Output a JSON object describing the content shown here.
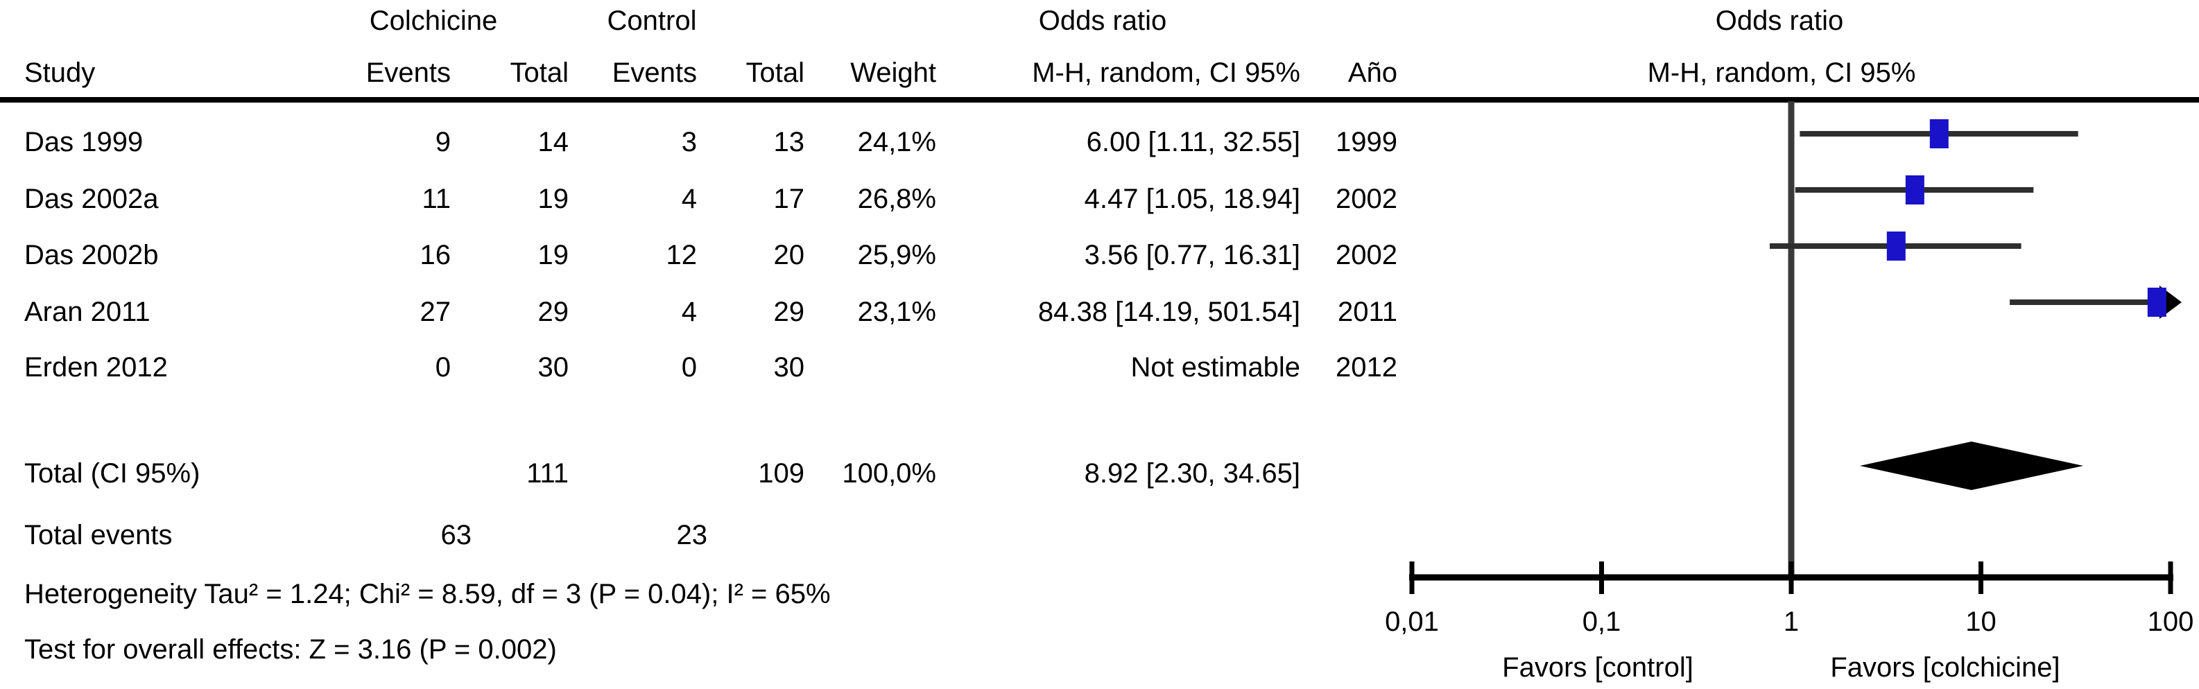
{
  "header": {
    "group": {
      "colchicine": "Colchicine",
      "control": "Control",
      "odds_ratio_left": "Odds ratio",
      "odds_ratio_right": "Odds ratio"
    },
    "columns": {
      "study": "Study",
      "events1": "Events",
      "total1": "Total",
      "events2": "Events",
      "total2": "Total",
      "weight": "Weight",
      "mh_left": "M-H, random, CI 95%",
      "year": "Año",
      "mh_right": "M-H, random, CI 95%"
    }
  },
  "table": {
    "rows": [
      {
        "study": "Das 1999",
        "e1": "9",
        "t1": "14",
        "e2": "3",
        "t2": "13",
        "weight": "24,1%",
        "or_text": "6.00 [1.11, 32.55]",
        "year": "1999"
      },
      {
        "study": "Das 2002a",
        "e1": "11",
        "t1": "19",
        "e2": "4",
        "t2": "17",
        "weight": "26,8%",
        "or_text": "4.47 [1.05, 18.94]",
        "year": "2002"
      },
      {
        "study": "Das 2002b",
        "e1": "16",
        "t1": "19",
        "e2": "12",
        "t2": "20",
        "weight": "25,9%",
        "or_text": "3.56 [0.77, 16.31]",
        "year": "2002"
      },
      {
        "study": "Aran 2011",
        "e1": "27",
        "t1": "29",
        "e2": "4",
        "t2": "29",
        "weight": "23,1%",
        "or_text": "84.38 [14.19, 501.54]",
        "year": "2011"
      },
      {
        "study": "Erden 2012",
        "e1": "0",
        "t1": "30",
        "e2": "0",
        "t2": "30",
        "weight": "",
        "or_text": "Not estimable",
        "year": "2012"
      }
    ],
    "total_row": {
      "label": "Total (CI 95%)",
      "t1": "111",
      "t2": "109",
      "weight": "100,0%",
      "or_text": "8.92 [2.30, 34.65]"
    },
    "total_events_row": {
      "label": "Total events",
      "e1": "63",
      "e2": "23"
    },
    "heterogeneity": "Heterogeneity Tau² = 1.24; Chi² = 8.59, df = 3 (P = 0.04); I² = 65%",
    "overall_effect": "Test for overall effects: Z = 3.16 (P = 0.002)"
  },
  "plot_labels": {
    "favors_left": "Favors [control]",
    "favors_right": "Favors [colchicine]"
  },
  "chart_data": {
    "type": "forest",
    "x_scale": "log10",
    "axis_range": [
      0.01,
      100
    ],
    "axis_ticks": [
      0.01,
      0.1,
      1,
      10,
      100
    ],
    "axis_tick_labels": [
      "0,01",
      "0,1",
      "1",
      "10",
      "100"
    ],
    "null_line": 1,
    "effect_measure": "Odds ratio, M-H random, CI 95%",
    "studies": [
      {
        "name": "Das 1999",
        "or": 6.0,
        "ci_low": 1.11,
        "ci_high": 32.55,
        "weight_pct": 24.1,
        "year": 1999
      },
      {
        "name": "Das 2002a",
        "or": 4.47,
        "ci_low": 1.05,
        "ci_high": 18.94,
        "weight_pct": 26.8,
        "year": 2002
      },
      {
        "name": "Das 2002b",
        "or": 3.56,
        "ci_low": 0.77,
        "ci_high": 16.31,
        "weight_pct": 25.9,
        "year": 2002
      },
      {
        "name": "Aran 2011",
        "or": 84.38,
        "ci_low": 14.19,
        "ci_high": 501.54,
        "weight_pct": 23.1,
        "year": 2011
      },
      {
        "name": "Erden 2012",
        "or": null,
        "ci_low": null,
        "ci_high": null,
        "weight_pct": null,
        "year": 2012,
        "note": "Not estimable"
      }
    ],
    "total": {
      "or": 8.92,
      "ci_low": 2.3,
      "ci_high": 34.65,
      "weight_pct": 100.0
    },
    "totals": {
      "colchicine_total": 111,
      "control_total": 109,
      "colchicine_events": 63,
      "control_events": 23
    },
    "heterogeneity": {
      "tau2": 1.24,
      "chi2": 8.59,
      "df": 3,
      "p": 0.04,
      "i2_pct": 65
    },
    "overall_effect": {
      "z": 3.16,
      "p": 0.002
    },
    "marker_color": "#1a12c8",
    "line_color": "#2e2e2e",
    "diamond_color": "#000000"
  }
}
